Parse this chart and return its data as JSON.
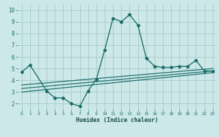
{
  "xlabel": "Humidex (Indice chaleur)",
  "bg_color": "#cce8e8",
  "grid_color": "#aacccc",
  "line_color": "#1a6b6b",
  "xlim": [
    -0.5,
    23.5
  ],
  "ylim": [
    1.5,
    10.5
  ],
  "xticks": [
    0,
    1,
    2,
    3,
    4,
    5,
    6,
    7,
    8,
    9,
    10,
    11,
    12,
    13,
    14,
    15,
    16,
    17,
    18,
    19,
    20,
    21,
    22,
    23
  ],
  "yticks": [
    2,
    3,
    4,
    5,
    6,
    7,
    8,
    9,
    10
  ],
  "series_main_x": [
    0,
    1,
    3,
    4,
    5,
    6,
    7,
    8,
    9,
    10,
    11,
    12,
    13,
    14,
    15,
    16,
    17,
    18,
    19,
    20,
    21,
    22,
    23
  ],
  "series_main_y": [
    4.7,
    5.3,
    3.1,
    2.5,
    2.5,
    2.0,
    1.8,
    3.1,
    4.1,
    6.6,
    9.3,
    9.0,
    9.6,
    8.7,
    5.9,
    5.2,
    5.1,
    5.1,
    5.2,
    5.2,
    5.7,
    4.8,
    4.8
  ],
  "line1_x": [
    0,
    23
  ],
  "line1_y": [
    3.6,
    5.0
  ],
  "line2_x": [
    0,
    23
  ],
  "line2_y": [
    3.3,
    4.8
  ],
  "line3_x": [
    0,
    23
  ],
  "line3_y": [
    3.0,
    4.65
  ]
}
